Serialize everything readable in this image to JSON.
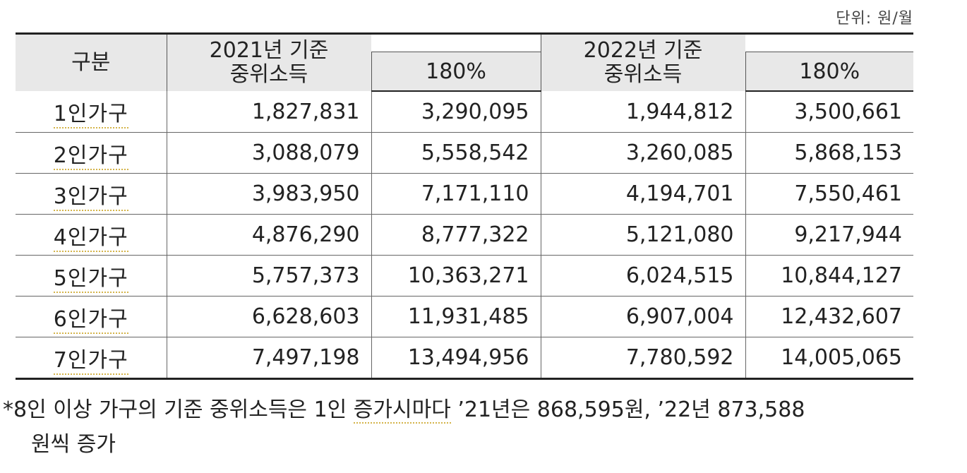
{
  "unit_label": "단위: 원/월",
  "headers": {
    "category": "구분",
    "median_2021": "2021년 기준\n중위소득",
    "pct_2021": "180%",
    "median_2022": "2022년 기준\n중위소득",
    "pct_2022": "180%"
  },
  "rows": [
    {
      "label": "1인가구",
      "m2021": "1,827,831",
      "p2021": "3,290,095",
      "m2022": "1,944,812",
      "p2022": "3,500,661"
    },
    {
      "label": "2인가구",
      "m2021": "3,088,079",
      "p2021": "5,558,542",
      "m2022": "3,260,085",
      "p2022": "5,868,153"
    },
    {
      "label": "3인가구",
      "m2021": "3,983,950",
      "p2021": "7,171,110",
      "m2022": "4,194,701",
      "p2022": "7,550,461"
    },
    {
      "label": "4인가구",
      "m2021": "4,876,290",
      "p2021": "8,777,322",
      "m2022": "5,121,080",
      "p2022": "9,217,944"
    },
    {
      "label": "5인가구",
      "m2021": "5,757,373",
      "p2021": "10,363,271",
      "m2022": "6,024,515",
      "p2022": "10,844,127"
    },
    {
      "label": "6인가구",
      "m2021": "6,628,603",
      "p2021": "11,931,485",
      "m2022": "6,907,004",
      "p2022": "12,432,607"
    },
    {
      "label": "7인가구",
      "m2021": "7,497,198",
      "p2021": "13,494,956",
      "m2022": "7,780,592",
      "p2022": "14,005,065"
    }
  ],
  "footnote": {
    "before": "*8인 이상 가구의 기준 중위소득은 1인 ",
    "underlined": "증가시마다",
    "after": " ’21년은 868,595원, ’22년 873,588",
    "line2": "원씩 증가"
  }
}
